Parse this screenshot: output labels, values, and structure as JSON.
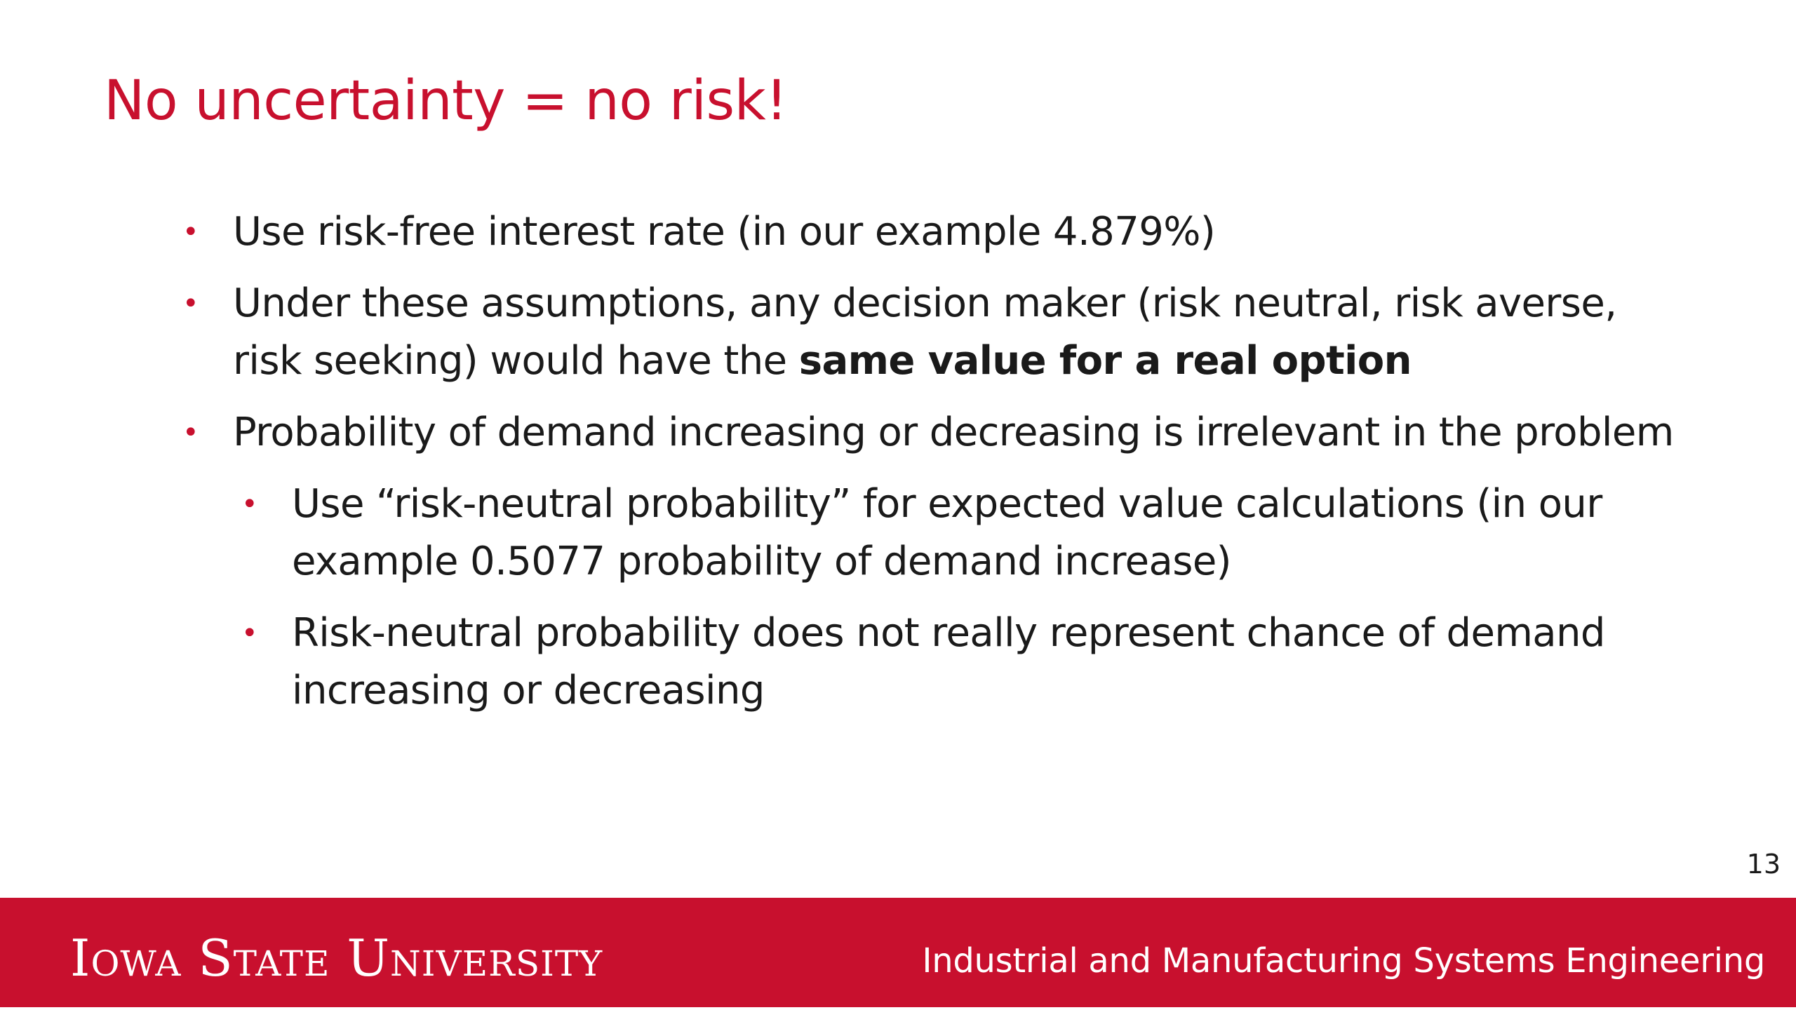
{
  "slide": {
    "title": "No uncertainty = no risk!",
    "bullets": [
      {
        "text": "Use risk-free interest rate (in our example 4.879%)"
      },
      {
        "text_before": "Under these assumptions, any decision maker (risk neutral, risk averse, risk seeking) would have the ",
        "text_bold": "same value for a real option"
      },
      {
        "text": "Probability of demand increasing or decreasing is irrelevant in the problem"
      },
      {
        "text": "Use “risk-neutral probability” for expected value calculations (in our example 0.5077 probability of demand increase)"
      },
      {
        "text": "Risk-neutral probability does not really represent chance of demand increasing or decreasing"
      }
    ],
    "page_number": "13"
  },
  "footer": {
    "logo_text": "Iowa State University",
    "department": "Industrial and Manufacturing Systems Engineering"
  },
  "colors": {
    "accent": "#c8102e",
    "text": "#1a1a1a",
    "background": "#ffffff"
  },
  "icons": {
    "bullet": "bullet-dot-icon"
  }
}
